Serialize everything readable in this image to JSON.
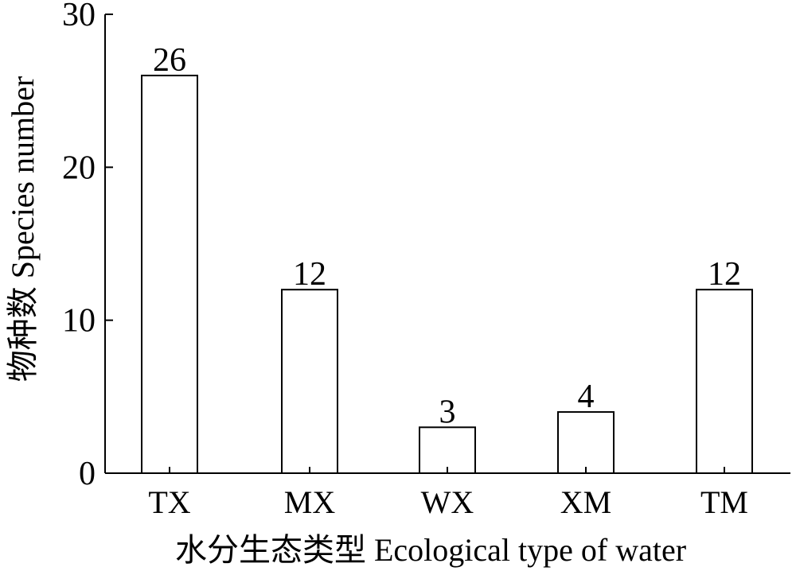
{
  "chart_data": {
    "type": "bar",
    "categories": [
      "TX",
      "MX",
      "WX",
      "XM",
      "TM"
    ],
    "values": [
      26,
      12,
      3,
      4,
      12
    ],
    "data_labels": [
      "26",
      "12",
      "3",
      "4",
      "12"
    ],
    "title": "",
    "xlabel": "水分生态类型 Ecological type of water",
    "ylabel": "物种数 Species number",
    "ylim": [
      0,
      30
    ],
    "yticks": [
      0,
      10,
      20,
      30
    ],
    "grid": false,
    "bar_fill": "#ffffff",
    "bar_stroke": "#000000"
  }
}
